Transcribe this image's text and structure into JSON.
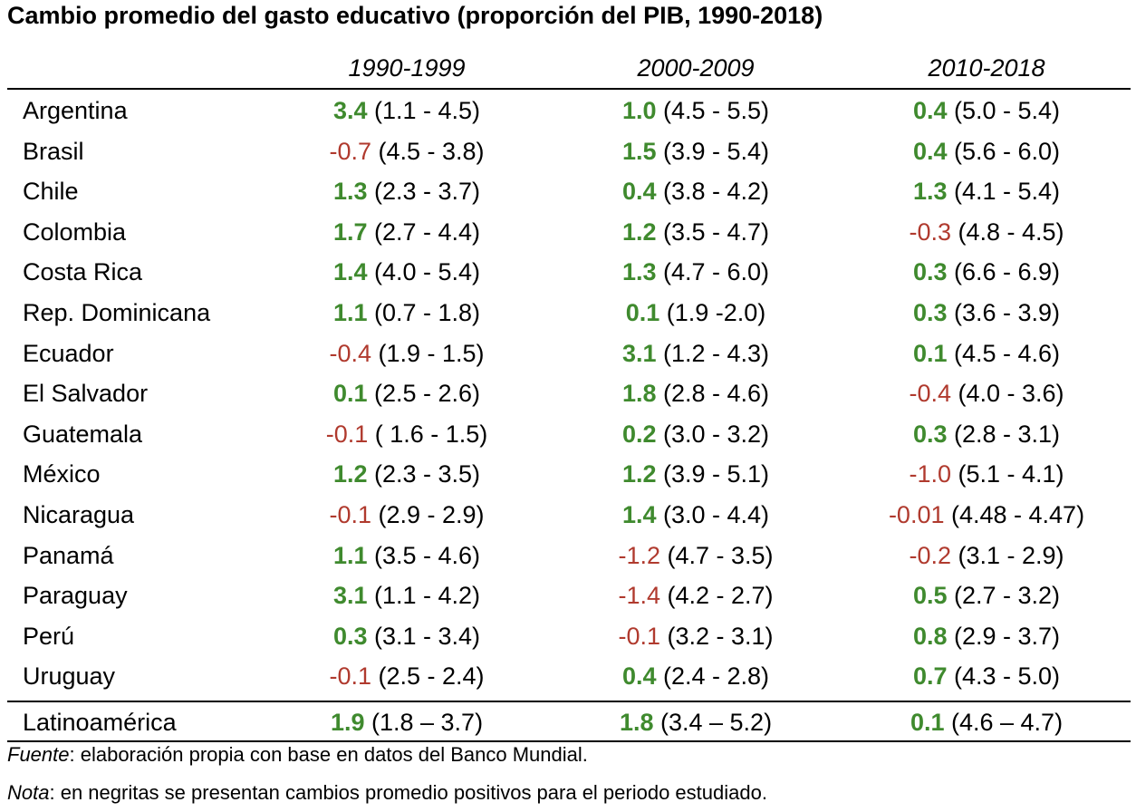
{
  "title": "Cambio promedio del gasto educativo (proporción del PIB, 1990-2018)",
  "periods": [
    "1990-1999",
    "2000-2009",
    "2010-2018"
  ],
  "rows": [
    {
      "country": "Argentina",
      "cells": [
        {
          "change": "3.4",
          "range": "(1.1 - 4.5)",
          "positive": true
        },
        {
          "change": "1.0",
          "range": "(4.5 - 5.5)",
          "positive": true
        },
        {
          "change": "0.4",
          "range": "(5.0 - 5.4)",
          "positive": true
        }
      ]
    },
    {
      "country": "Brasil",
      "cells": [
        {
          "change": "-0.7",
          "range": "(4.5 - 3.8)",
          "positive": false
        },
        {
          "change": "1.5",
          "range": "(3.9 - 5.4)",
          "positive": true
        },
        {
          "change": "0.4",
          "range": "(5.6 - 6.0)",
          "positive": true
        }
      ]
    },
    {
      "country": "Chile",
      "cells": [
        {
          "change": "1.3",
          "range": "(2.3 - 3.7)",
          "positive": true
        },
        {
          "change": "0.4",
          "range": "(3.8 - 4.2)",
          "positive": true
        },
        {
          "change": "1.3",
          "range": "(4.1 - 5.4)",
          "positive": true
        }
      ]
    },
    {
      "country": "Colombia",
      "cells": [
        {
          "change": "1.7",
          "range": "(2.7 - 4.4)",
          "positive": true
        },
        {
          "change": "1.2",
          "range": "(3.5 - 4.7)",
          "positive": true
        },
        {
          "change": "-0.3",
          "range": "(4.8 - 4.5)",
          "positive": false
        }
      ]
    },
    {
      "country": "Costa Rica",
      "cells": [
        {
          "change": "1.4",
          "range": "(4.0 - 5.4)",
          "positive": true
        },
        {
          "change": "1.3",
          "range": "(4.7 - 6.0)",
          "positive": true
        },
        {
          "change": "0.3",
          "range": "(6.6 - 6.9)",
          "positive": true
        }
      ]
    },
    {
      "country": "Rep. Dominicana",
      "cells": [
        {
          "change": "1.1",
          "range": "(0.7 - 1.8)",
          "positive": true
        },
        {
          "change": "0.1",
          "range": "(1.9 -2.0)",
          "positive": true
        },
        {
          "change": "0.3",
          "range": "(3.6 - 3.9)",
          "positive": true
        }
      ]
    },
    {
      "country": "Ecuador",
      "cells": [
        {
          "change": "-0.4",
          "range": "(1.9 - 1.5)",
          "positive": false
        },
        {
          "change": "3.1",
          "range": "(1.2 - 4.3)",
          "positive": true
        },
        {
          "change": "0.1",
          "range": "(4.5 - 4.6)",
          "positive": true
        }
      ]
    },
    {
      "country": "El Salvador",
      "cells": [
        {
          "change": "0.1",
          "range": "(2.5 - 2.6)",
          "positive": true
        },
        {
          "change": "1.8",
          "range": "(2.8 - 4.6)",
          "positive": true
        },
        {
          "change": "-0.4",
          "range": "(4.0 - 3.6)",
          "positive": false
        }
      ]
    },
    {
      "country": "Guatemala",
      "cells": [
        {
          "change": "-0.1",
          "range": "( 1.6 - 1.5)",
          "positive": false
        },
        {
          "change": "0.2",
          "range": "(3.0 - 3.2)",
          "positive": true
        },
        {
          "change": "0.3",
          "range": "(2.8 - 3.1)",
          "positive": true
        }
      ]
    },
    {
      "country": "México",
      "cells": [
        {
          "change": "1.2",
          "range": "(2.3 - 3.5)",
          "positive": true
        },
        {
          "change": "1.2",
          "range": "(3.9 - 5.1)",
          "positive": true
        },
        {
          "change": "-1.0",
          "range": "(5.1 - 4.1)",
          "positive": false
        }
      ]
    },
    {
      "country": "Nicaragua",
      "cells": [
        {
          "change": "-0.1",
          "range": "(2.9 - 2.9)",
          "positive": false
        },
        {
          "change": "1.4",
          "range": "(3.0 - 4.4)",
          "positive": true
        },
        {
          "change": "-0.01",
          "range": "(4.48 - 4.47)",
          "positive": false
        }
      ]
    },
    {
      "country": "Panamá",
      "cells": [
        {
          "change": "1.1",
          "range": "(3.5 - 4.6)",
          "positive": true
        },
        {
          "change": "-1.2",
          "range": "(4.7 - 3.5)",
          "positive": false
        },
        {
          "change": "-0.2",
          "range": "(3.1 - 2.9)",
          "positive": false
        }
      ]
    },
    {
      "country": "Paraguay",
      "cells": [
        {
          "change": "3.1",
          "range": "(1.1 - 4.2)",
          "positive": true
        },
        {
          "change": "-1.4",
          "range": "(4.2 - 2.7)",
          "positive": false
        },
        {
          "change": "0.5",
          "range": "(2.7 - 3.2)",
          "positive": true
        }
      ]
    },
    {
      "country": "Perú",
      "cells": [
        {
          "change": "0.3",
          "range": "(3.1 - 3.4)",
          "positive": true
        },
        {
          "change": "-0.1",
          "range": "(3.2 - 3.1)",
          "positive": false
        },
        {
          "change": "0.8",
          "range": "(2.9 - 3.7)",
          "positive": true
        }
      ]
    },
    {
      "country": "Uruguay",
      "cells": [
        {
          "change": "-0.1",
          "range": "(2.5 - 2.4)",
          "positive": false
        },
        {
          "change": "0.4",
          "range": "(2.4 - 2.8)",
          "positive": true
        },
        {
          "change": "0.7",
          "range": "(4.3 - 5.0)",
          "positive": true
        }
      ]
    }
  ],
  "total": {
    "country": "Latinoamérica",
    "cells": [
      {
        "change": "1.9",
        "range": "(1.8 – 3.7)",
        "positive": true
      },
      {
        "change": "1.8",
        "range": "(3.4 – 5.2)",
        "positive": true
      },
      {
        "change": "0.1",
        "range": "(4.6 – 4.7)",
        "positive": true
      }
    ]
  },
  "footnotes": {
    "source_label": "Fuente",
    "source_text": ": elaboración propia con base en datos del Banco Mundial.",
    "note_label": "Nota",
    "note_text": ": en negritas se presentan cambios promedio positivos para el periodo estudiado."
  },
  "colors": {
    "positive": "#3f8a2e",
    "negative": "#b03a2e"
  }
}
